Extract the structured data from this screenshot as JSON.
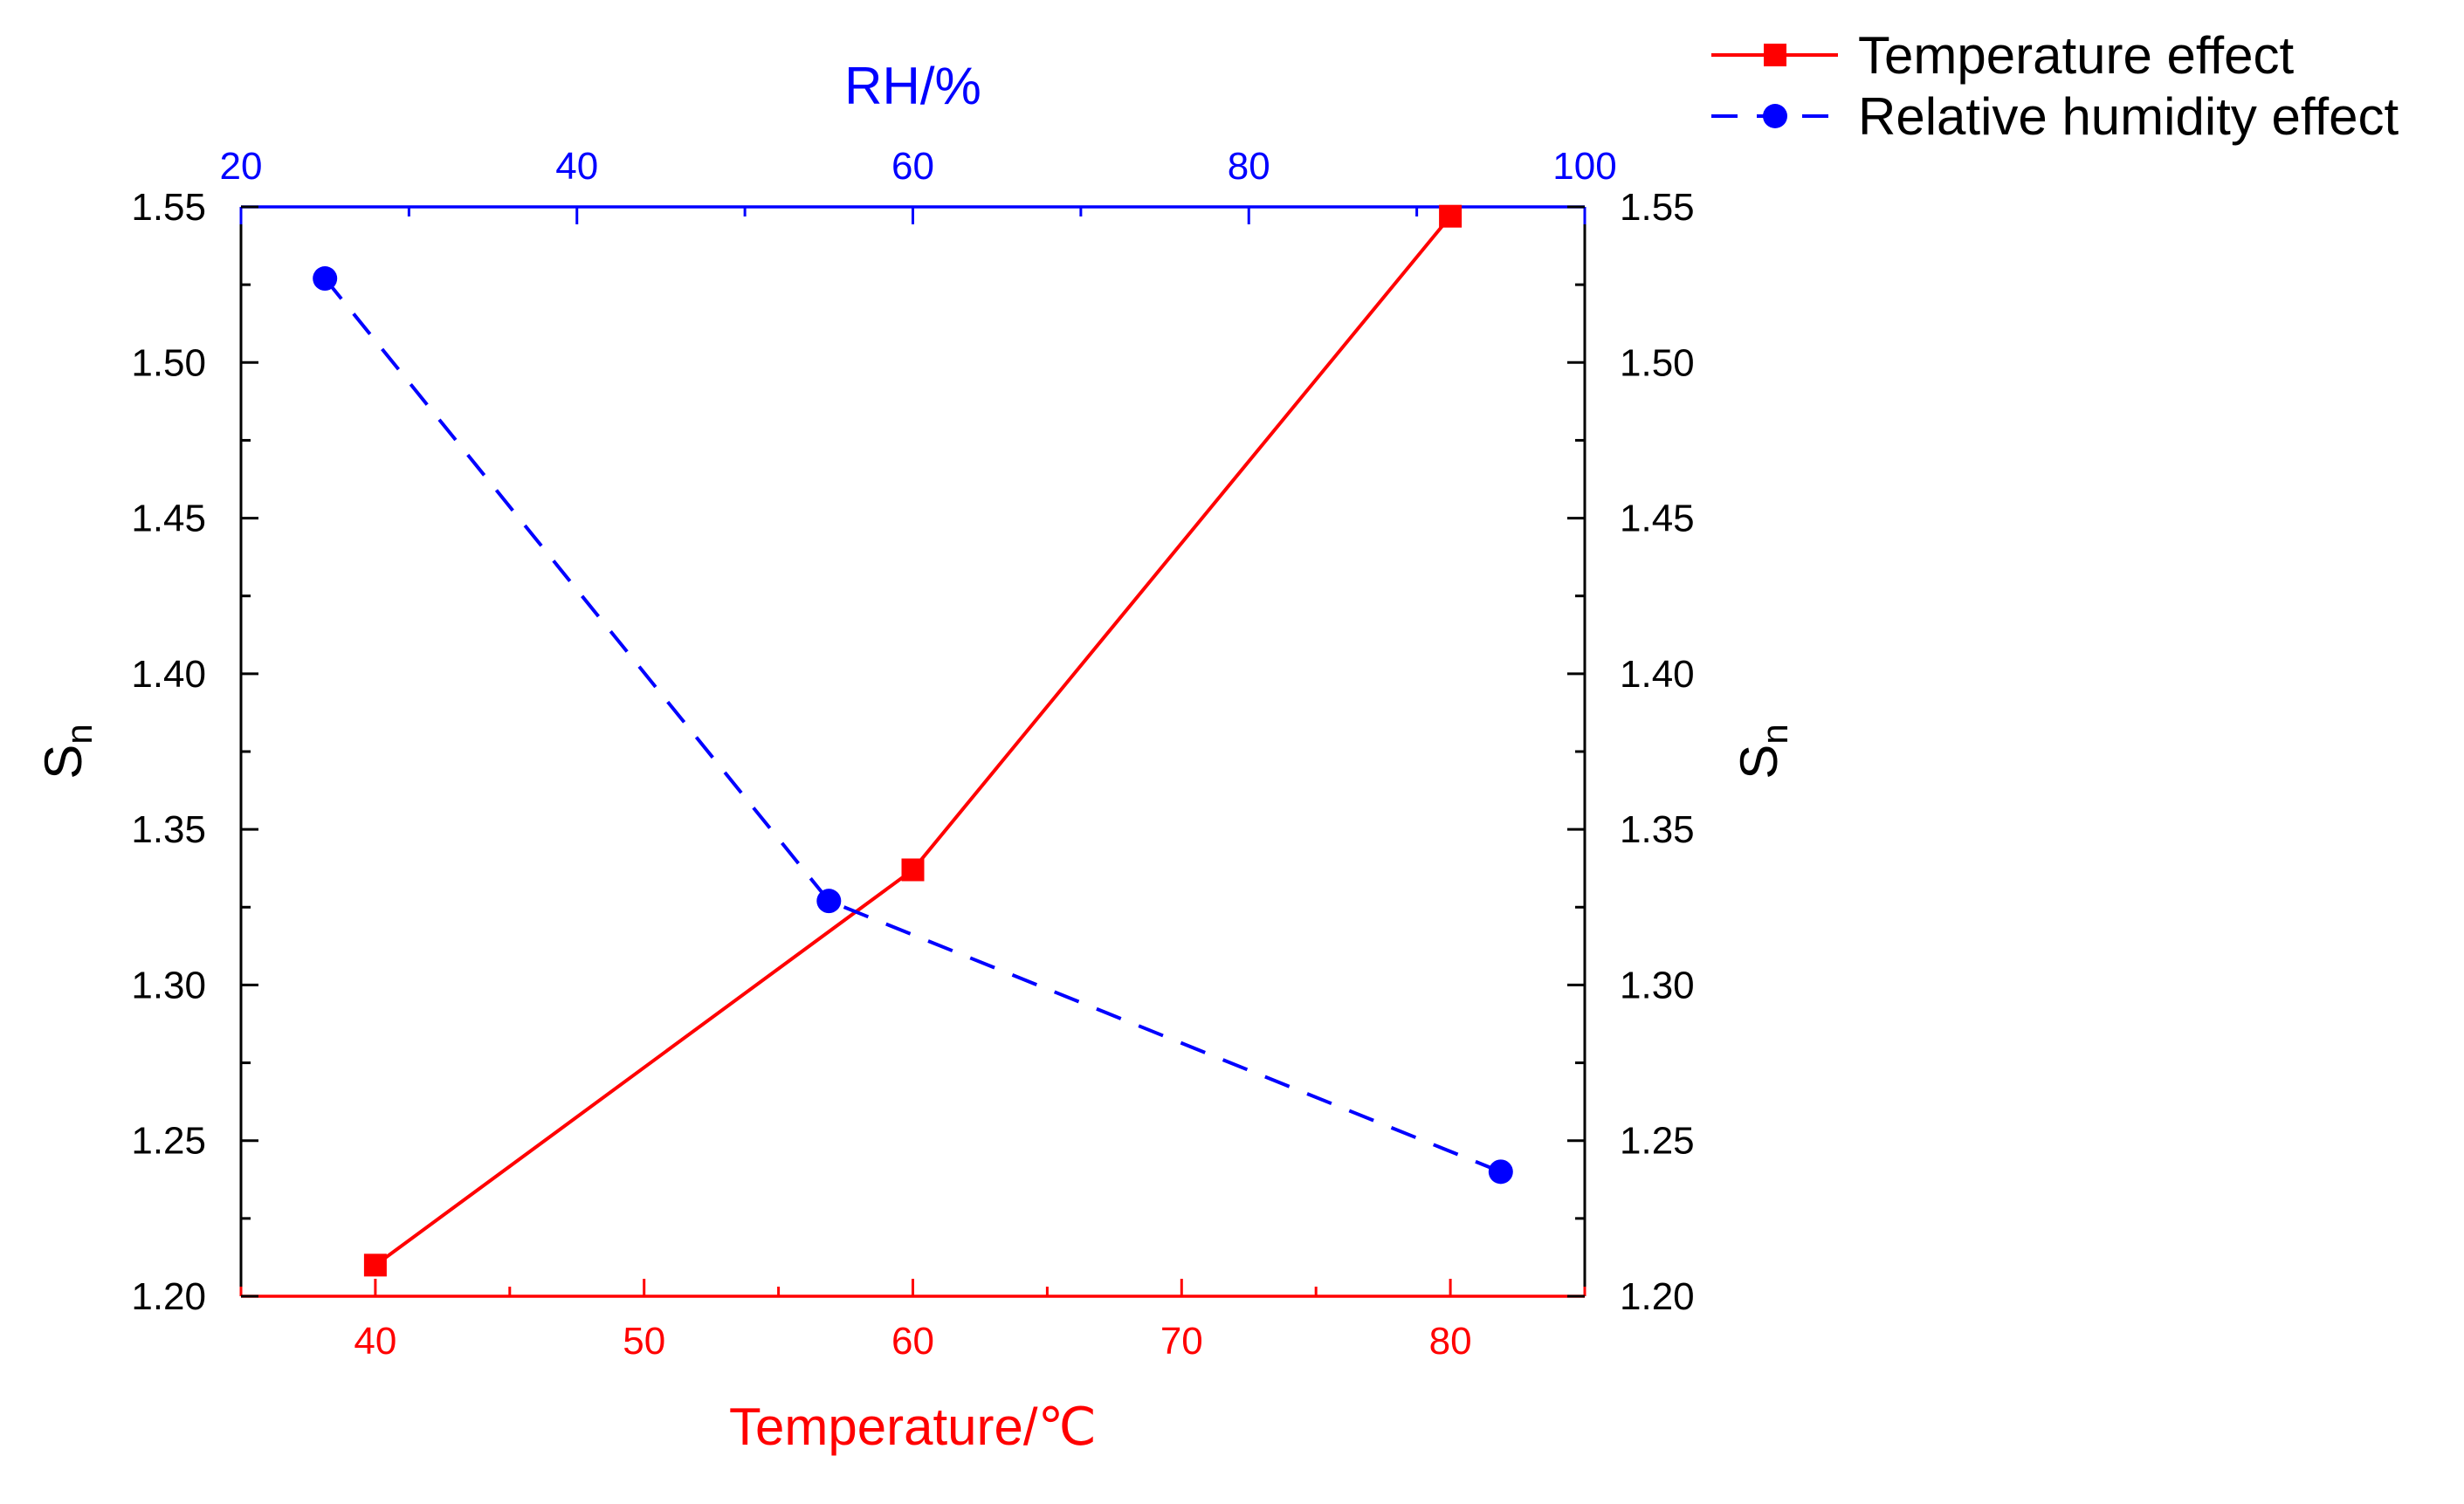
{
  "chart_data": {
    "type": "line",
    "series": [
      {
        "name": "Temperature effect",
        "color": "#ff0000",
        "marker": "square",
        "line_style": "solid",
        "axis": "bottom",
        "x": [
          40,
          60,
          80
        ],
        "y": [
          1.21,
          1.337,
          1.547
        ]
      },
      {
        "name": "Relative humidity effect",
        "color": "#0000ff",
        "marker": "circle",
        "line_style": "dashed",
        "axis": "top",
        "x": [
          25,
          55,
          95
        ],
        "y": [
          1.527,
          1.327,
          1.24
        ]
      }
    ],
    "bottom_axis": {
      "title": "Temperature/℃",
      "range": [
        35,
        85
      ],
      "ticks": [
        40,
        50,
        60,
        70,
        80
      ],
      "tick_labels": [
        "40",
        "50",
        "60",
        "70",
        "80"
      ],
      "minor_step": 5,
      "color": "#ff0000"
    },
    "top_axis": {
      "title": "RH/%",
      "range": [
        20,
        100
      ],
      "ticks": [
        20,
        40,
        60,
        80,
        100
      ],
      "tick_labels": [
        "20",
        "40",
        "60",
        "80",
        "100"
      ],
      "minor_step": 10,
      "color": "#0000ff"
    },
    "left_axis": {
      "title": "S",
      "subscript": "n",
      "range": [
        1.2,
        1.55
      ],
      "ticks": [
        1.2,
        1.25,
        1.3,
        1.35,
        1.4,
        1.45,
        1.5,
        1.55
      ],
      "tick_labels": [
        "1.20",
        "1.25",
        "1.30",
        "1.35",
        "1.40",
        "1.45",
        "1.50",
        "1.55"
      ],
      "minor_step": 0.025,
      "color": "#000000"
    },
    "right_axis": {
      "title": "S",
      "subscript": "n",
      "range": [
        1.2,
        1.55
      ],
      "ticks": [
        1.2,
        1.25,
        1.3,
        1.35,
        1.4,
        1.45,
        1.5,
        1.55
      ],
      "tick_labels": [
        "1.20",
        "1.25",
        "1.30",
        "1.35",
        "1.40",
        "1.45",
        "1.50",
        "1.55"
      ],
      "color": "#000000"
    },
    "legend": {
      "placement": "top-right-outside",
      "entries": [
        "Temperature effect",
        "Relative humidity effect"
      ]
    },
    "grid": false
  }
}
